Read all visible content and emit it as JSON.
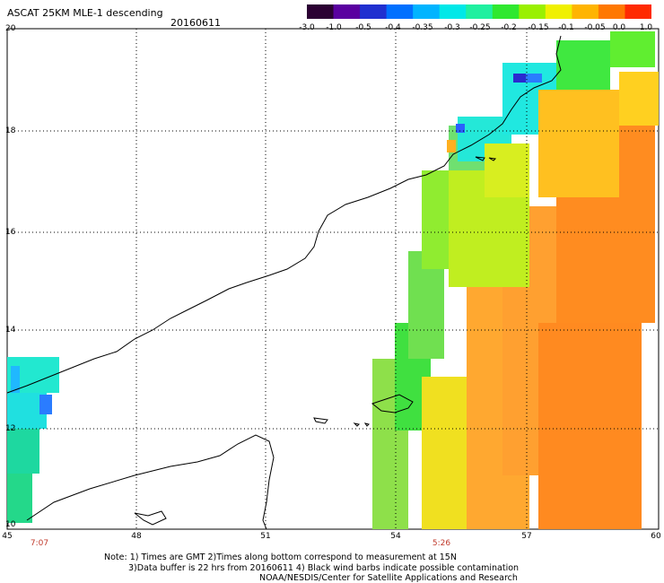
{
  "header": {
    "title": "ASCAT 25KM MLE-1 descending",
    "date": "20160611"
  },
  "colorbar": {
    "ticks": [
      "-3.0",
      "-1.0",
      "-0.5",
      "-0.4",
      "-0.35",
      "-0.3",
      "-0.25",
      "-0.2",
      "-0.15",
      "-0.1",
      "-0.05",
      "0.0",
      "1.0"
    ],
    "colors": [
      "#2b0033",
      "#5a00a0",
      "#2030d0",
      "#0070ff",
      "#00b4ff",
      "#00e8e8",
      "#20f0a0",
      "#30e830",
      "#9af000",
      "#f0f000",
      "#ffb400",
      "#ff7800",
      "#ff2a00"
    ]
  },
  "map": {
    "lat_labels": [
      "20",
      "18",
      "16",
      "14",
      "12",
      "10"
    ],
    "lon_labels": [
      "45",
      "48",
      "51",
      "54",
      "57",
      "60"
    ],
    "pass_times": [
      "7:07",
      "5:26"
    ]
  },
  "notes": [
    "Note: 1) Times are GMT 2)Times along bottom correspond to measurement at 15N",
    "3)Data buffer is 22 hrs from 20160611 4) Black wind barbs indicate possible contamination",
    "NOAA/NESDIS/Center for Satellite Applications and Research"
  ]
}
